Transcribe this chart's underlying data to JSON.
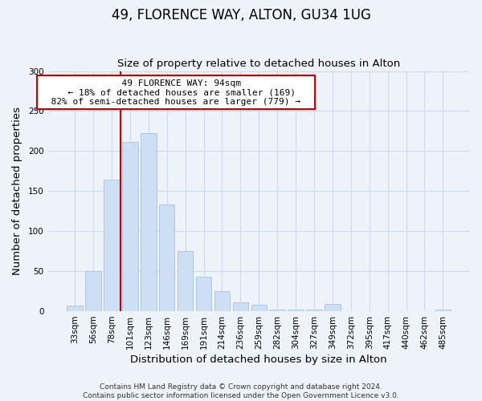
{
  "title": "49, FLORENCE WAY, ALTON, GU34 1UG",
  "subtitle": "Size of property relative to detached houses in Alton",
  "xlabel": "Distribution of detached houses by size in Alton",
  "ylabel": "Number of detached properties",
  "bar_color": "#ccdff5",
  "bar_edge_color": "#a8c4e0",
  "categories": [
    "33sqm",
    "56sqm",
    "78sqm",
    "101sqm",
    "123sqm",
    "146sqm",
    "169sqm",
    "191sqm",
    "214sqm",
    "236sqm",
    "259sqm",
    "282sqm",
    "304sqm",
    "327sqm",
    "349sqm",
    "372sqm",
    "395sqm",
    "417sqm",
    "440sqm",
    "462sqm",
    "485sqm"
  ],
  "values": [
    7,
    50,
    164,
    211,
    222,
    133,
    75,
    43,
    25,
    11,
    8,
    2,
    2,
    2,
    9,
    0,
    0,
    0,
    0,
    0,
    2
  ],
  "vline_x_index": 3,
  "vline_color": "#cc0000",
  "annotation_title": "49 FLORENCE WAY: 94sqm",
  "annotation_line1": "← 18% of detached houses are smaller (169)",
  "annotation_line2": "82% of semi-detached houses are larger (779) →",
  "annotation_box_color": "#ffffff",
  "annotation_box_edge": "#cc0000",
  "ylim": [
    0,
    300
  ],
  "yticks": [
    0,
    50,
    100,
    150,
    200,
    250,
    300
  ],
  "footer_line1": "Contains HM Land Registry data © Crown copyright and database right 2024.",
  "footer_line2": "Contains public sector information licensed under the Open Government Licence v3.0.",
  "bg_color": "#eef2f9",
  "grid_color": "#d0daea",
  "title_fontsize": 12,
  "subtitle_fontsize": 9.5,
  "tick_fontsize": 7.5,
  "label_fontsize": 9.5,
  "footer_fontsize": 6.5
}
